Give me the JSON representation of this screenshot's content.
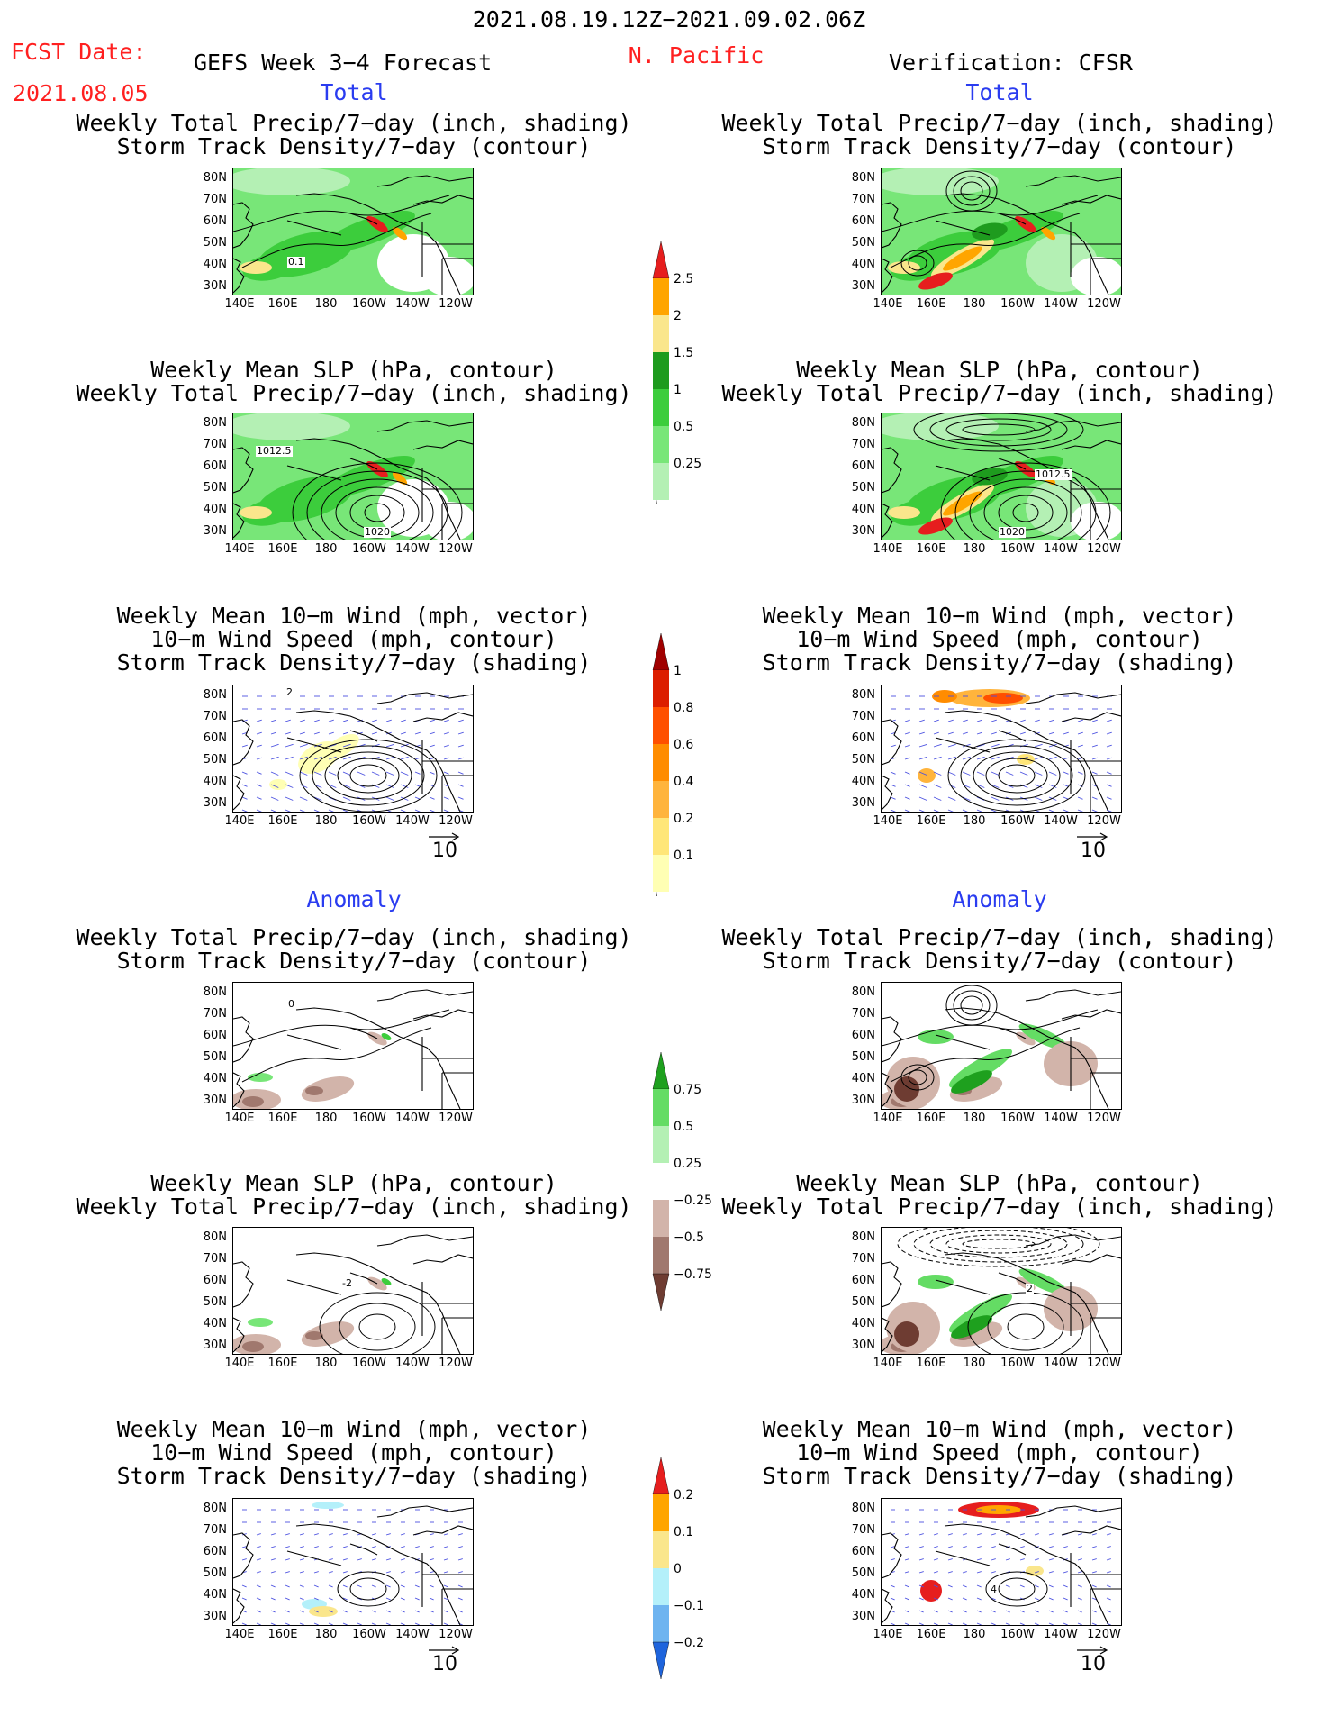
{
  "header": {
    "date_range": "2021.08.19.12Z−2021.09.02.06Z",
    "fcst_label": "FCST Date:",
    "fcst_date": "2021.08.05",
    "model_title": "GEFS Week 3−4 Forecast",
    "region": "N. Pacific",
    "verification": "Verification: CFSR"
  },
  "sections": {
    "total": "Total",
    "anomaly": "Anomaly"
  },
  "panel_titles": {
    "precip_storm_1": "Weekly Total Precip/7−day (inch, shading)",
    "precip_storm_2": "Storm Track Density/7−day (contour)",
    "slp_precip_1": "Weekly Mean SLP (hPa, contour)",
    "slp_precip_2": "Weekly Total Precip/7−day (inch, shading)",
    "wind_1": "Weekly Mean 10−m Wind (mph, vector)",
    "wind_2": "10−m Wind Speed (mph, contour)",
    "wind_3": "Storm Track Density/7−day (shading)"
  },
  "axes": {
    "lat_ticks": [
      "80N",
      "70N",
      "60N",
      "50N",
      "40N",
      "30N"
    ],
    "lon_ticks": [
      "140E",
      "160E",
      "180",
      "160W",
      "140W",
      "120W"
    ]
  },
  "contour_labels": {
    "storm_01": "0.1",
    "slp_1012": "1012.5",
    "slp_1020": "1020",
    "wind_2": "2",
    "wind_4": "4",
    "anom_0": "0",
    "anom_neg2": "-2",
    "anom_2": "2"
  },
  "vector_ref": "10",
  "colorbars": {
    "precip_total": {
      "levels": [
        "0.25",
        "0.5",
        "1",
        "1.5",
        "2",
        "2.5"
      ],
      "colors": [
        "#b4f0b4",
        "#78e678",
        "#3ccd3c",
        "#1e9b1e",
        "#fae68c",
        "#ffa500",
        "#e61e1e"
      ]
    },
    "storm_total": {
      "levels": [
        "0.1",
        "0.2",
        "0.4",
        "0.6",
        "0.8",
        "1"
      ],
      "colors": [
        "#ffffb4",
        "#ffe678",
        "#ffb43c",
        "#ff8c00",
        "#ff5000",
        "#dc1e00",
        "#a00000"
      ]
    },
    "precip_anom": {
      "levels": [
        "−0.75",
        "−0.5",
        "−0.25",
        "0.25",
        "0.5",
        "0.75"
      ],
      "colors": [
        "#6e3c32",
        "#a0786e",
        "#d2b4aa",
        "#ffffff",
        "#b4f0b4",
        "#64dc64",
        "#1ea01e"
      ]
    },
    "storm_anom": {
      "levels": [
        "−0.2",
        "−0.1",
        "0",
        "0.1",
        "0.2"
      ],
      "colors": [
        "#1e64dc",
        "#6eb4f0",
        "#b4f0fa",
        "#fae68c",
        "#ffa500",
        "#e61e1e"
      ]
    }
  }
}
